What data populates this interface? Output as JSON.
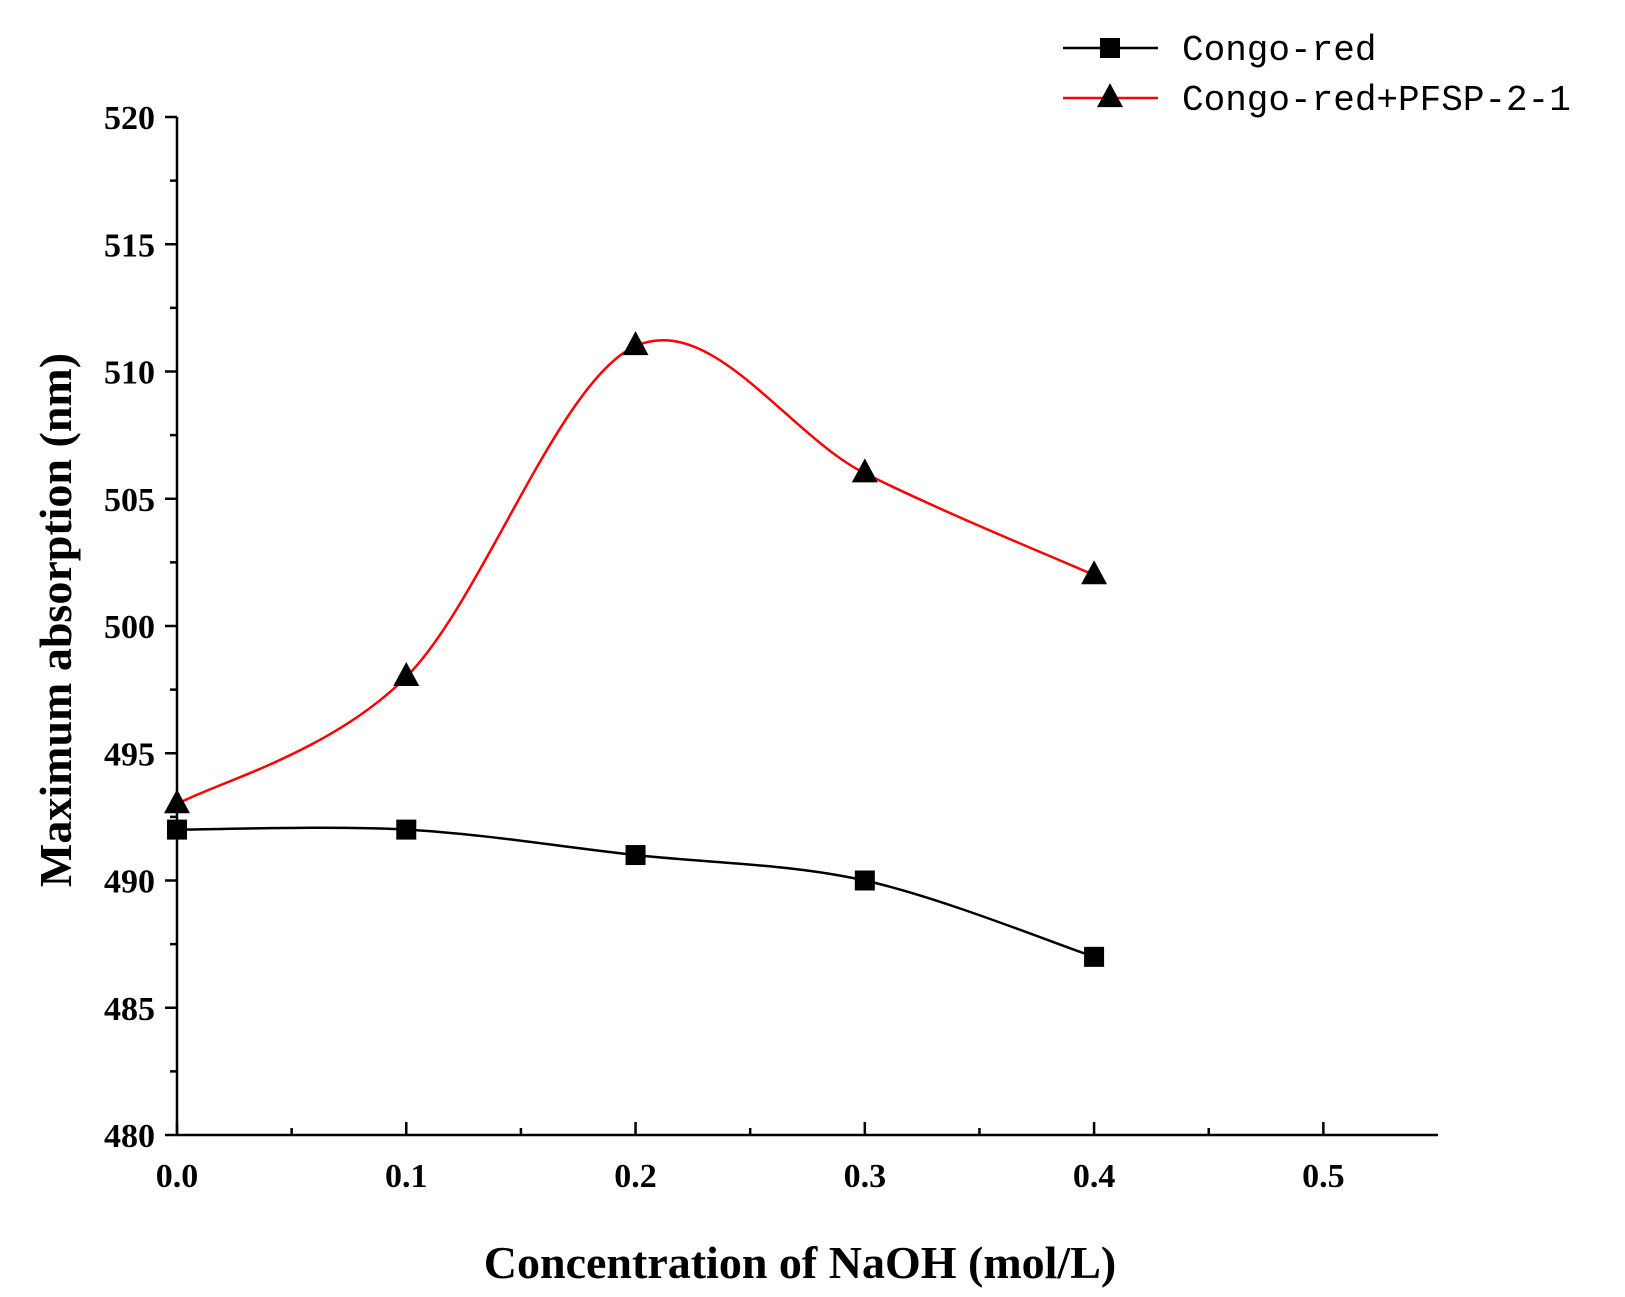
{
  "chart_data": {
    "type": "line",
    "title": "",
    "xlabel": "Concentration of NaOH (mol/L)",
    "ylabel": "Maximum absorption (nm)",
    "xlim": [
      0.0,
      0.55
    ],
    "ylim": [
      480,
      520
    ],
    "x_ticks": [
      0.0,
      0.1,
      0.2,
      0.3,
      0.4,
      0.5
    ],
    "x_tick_labels": [
      "0.0",
      "0.1",
      "0.2",
      "0.3",
      "0.4",
      "0.5"
    ],
    "y_ticks": [
      480,
      485,
      490,
      495,
      500,
      505,
      510,
      515,
      520
    ],
    "y_tick_labels": [
      "480",
      "485",
      "490",
      "495",
      "500",
      "505",
      "510",
      "515",
      "520"
    ],
    "grid": false,
    "legend_position": "top-right",
    "series": [
      {
        "name": "Congo-red",
        "marker": "square",
        "color": "#000000",
        "x": [
          0.0,
          0.1,
          0.2,
          0.3,
          0.4
        ],
        "values": [
          492,
          492,
          491,
          490,
          487
        ]
      },
      {
        "name": "Congo-red+PFSP-2-1",
        "marker": "triangle",
        "color": "#ff0000",
        "x": [
          0.0,
          0.1,
          0.2,
          0.3,
          0.4
        ],
        "values": [
          493,
          498,
          511,
          506,
          502
        ]
      }
    ]
  }
}
